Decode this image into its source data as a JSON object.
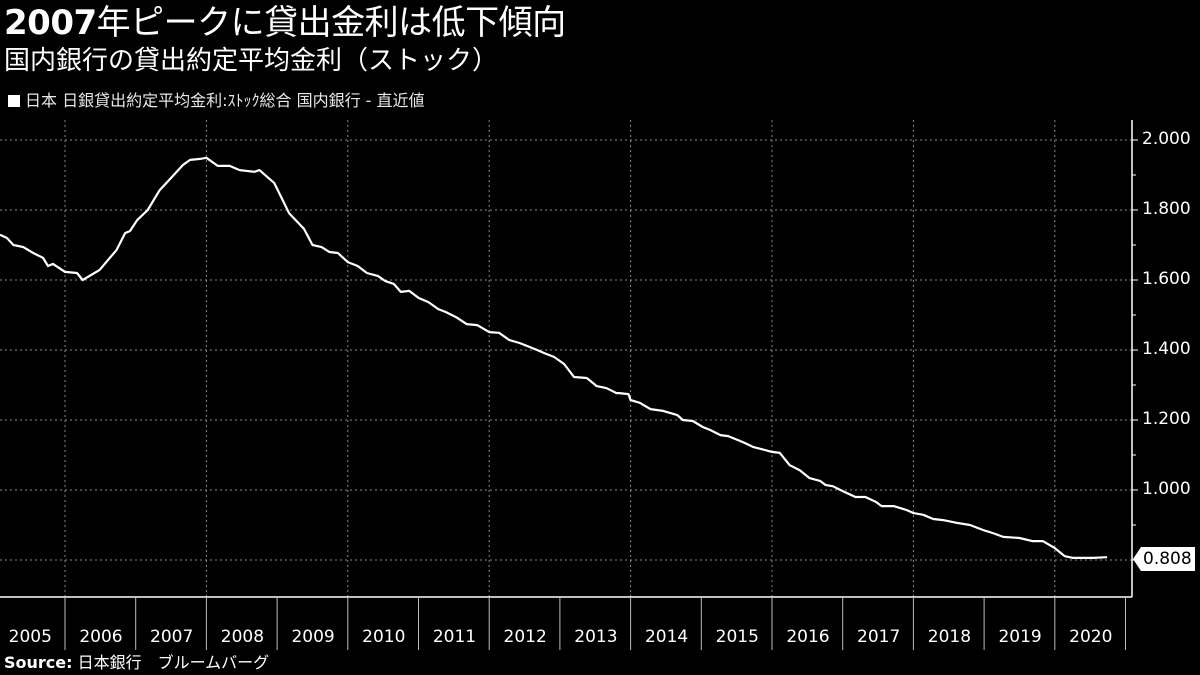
{
  "header": {
    "title_bold": "2007",
    "title_rest": "年ピークに貸出金利は低下傾向",
    "subtitle": "国内銀行の貸出約定平均金利（ストック）",
    "legend_label": "日本 日銀貸出約定平均金利:ｽﾄｯｸ総合 国内銀行 - 直近値"
  },
  "footer": {
    "source_label": "Source:",
    "source_text": "日本銀行　ブルームバーグ"
  },
  "last_value_tag": "0.808",
  "colors": {
    "background": "#000000",
    "line": "#ffffff",
    "grid": "#8a8a8a",
    "text": "#ffffff"
  },
  "chart_data": {
    "type": "line",
    "title": "2007年ピークに貸出金利は低下傾向",
    "subtitle": "国内銀行の貸出約定平均金利（ストック）",
    "xlabel": "",
    "ylabel": "",
    "legend": [
      "日本 日銀貸出約定平均金利:ｽﾄｯｸ総合 国内銀行 - 直近値"
    ],
    "legend_position": "top-left",
    "y_axis_position": "right",
    "grid": true,
    "xlim": [
      2005.0,
      2021.0
    ],
    "ylim": [
      0.75,
      2.05
    ],
    "y_ticks": [
      "2.000",
      "1.800",
      "1.600",
      "1.400",
      "1.200",
      "1.000"
    ],
    "y_tick_values": [
      2.0,
      1.8,
      1.6,
      1.4,
      1.2,
      1.0
    ],
    "x_ticks": [
      "2005",
      "2006",
      "2007",
      "2008",
      "2009",
      "2010",
      "2011",
      "2012",
      "2013",
      "2014",
      "2015",
      "2016",
      "2017",
      "2018",
      "2019",
      "2020"
    ],
    "last_value": 0.808,
    "series": [
      {
        "name": "日本 日銀貸出約定平均金利:ｽﾄｯｸ総合 国内銀行 - 直近値",
        "x": [
          2005.08,
          2005.18,
          2005.27,
          2005.41,
          2005.55,
          2005.69,
          2005.76,
          2005.83,
          2006.0,
          2006.17,
          2006.25,
          2006.49,
          2006.73,
          2006.85,
          2006.92,
          2007.02,
          2007.17,
          2007.34,
          2007.51,
          2007.67,
          2007.77,
          2007.91,
          2008.0,
          2008.16,
          2008.33,
          2008.47,
          2008.68,
          2008.75,
          2008.96,
          2009.17,
          2009.38,
          2009.5,
          2009.63,
          2009.74,
          2009.86,
          2010.0,
          2010.14,
          2010.27,
          2010.43,
          2010.53,
          2010.65,
          2010.75,
          2010.87,
          2011.0,
          2011.14,
          2011.28,
          2011.38,
          2011.53,
          2011.68,
          2011.83,
          2012.0,
          2012.14,
          2012.28,
          2012.43,
          2012.64,
          2012.78,
          2012.92,
          2013.06,
          2013.2,
          2013.38,
          2013.52,
          2013.66,
          2013.8,
          2013.84,
          2013.97,
          2014.0,
          2014.13,
          2014.28,
          2014.46,
          2014.66,
          2014.74,
          2014.88,
          2015.02,
          2015.13,
          2015.27,
          2015.38,
          2015.55,
          2015.62,
          2015.73,
          2016.0,
          2016.11,
          2016.25,
          2016.39,
          2016.53,
          2016.68,
          2016.76,
          2016.86,
          2017.0,
          2017.18,
          2017.32,
          2017.47,
          2017.55,
          2017.72,
          2017.9,
          2018.0,
          2018.14,
          2018.28,
          2018.42,
          2018.62,
          2018.8,
          2018.98,
          2019.12,
          2019.27,
          2019.5,
          2019.68,
          2019.83,
          2020.0,
          2020.14,
          2020.26,
          2020.4,
          2020.54,
          2020.74
        ],
        "values": [
          1.729,
          1.72,
          1.7,
          1.694,
          1.677,
          1.663,
          1.64,
          1.646,
          1.623,
          1.62,
          1.6,
          1.629,
          1.686,
          1.734,
          1.74,
          1.771,
          1.8,
          1.857,
          1.894,
          1.929,
          1.943,
          1.946,
          1.949,
          1.926,
          1.926,
          1.914,
          1.909,
          1.914,
          1.877,
          1.791,
          1.746,
          1.7,
          1.694,
          1.68,
          1.677,
          1.651,
          1.64,
          1.62,
          1.611,
          1.597,
          1.589,
          1.566,
          1.569,
          1.549,
          1.537,
          1.517,
          1.509,
          1.494,
          1.474,
          1.471,
          1.451,
          1.449,
          1.429,
          1.42,
          1.403,
          1.391,
          1.38,
          1.36,
          1.323,
          1.32,
          1.297,
          1.291,
          1.277,
          1.277,
          1.274,
          1.257,
          1.249,
          1.231,
          1.226,
          1.214,
          1.2,
          1.197,
          1.18,
          1.171,
          1.157,
          1.154,
          1.14,
          1.134,
          1.123,
          1.109,
          1.106,
          1.071,
          1.057,
          1.034,
          1.026,
          1.014,
          1.011,
          0.997,
          0.98,
          0.98,
          0.966,
          0.954,
          0.954,
          0.943,
          0.934,
          0.929,
          0.917,
          0.914,
          0.906,
          0.9,
          0.886,
          0.877,
          0.866,
          0.863,
          0.854,
          0.854,
          0.834,
          0.811,
          0.806,
          0.806,
          0.806,
          0.808
        ]
      }
    ]
  }
}
